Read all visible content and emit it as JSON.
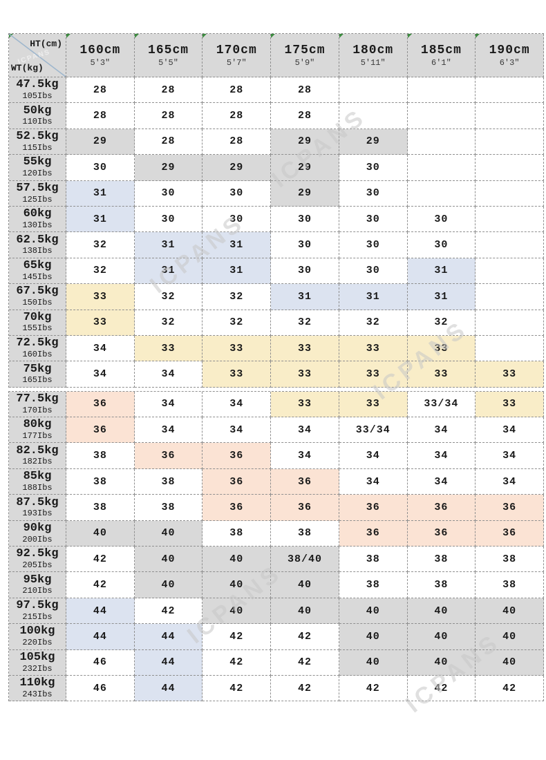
{
  "watermark": {
    "text": "ICPANS"
  },
  "colors": {
    "header_bg": "#d9d9d9",
    "border": "#8f8f8f",
    "triangle_green": "#3d8b40",
    "diagonal_line": "#9db6cd",
    "cell_fills": {
      "w": "#ffffff",
      "g": "#d9d9d9",
      "b": "#dce3f0",
      "y": "#f9edc8",
      "p": "#fbe3d4"
    }
  },
  "chart_data": {
    "type": "table",
    "title": "Height / Weight size chart",
    "corner": {
      "top_label": "HT(cm)",
      "bottom_label": "WT(kg)"
    },
    "columns": [
      {
        "cm": "160cm",
        "ft": "5'3\""
      },
      {
        "cm": "165cm",
        "ft": "5'5\""
      },
      {
        "cm": "170cm",
        "ft": "5'7\""
      },
      {
        "cm": "175cm",
        "ft": "5'9\""
      },
      {
        "cm": "180cm",
        "ft": "5'11\""
      },
      {
        "cm": "185cm",
        "ft": "6'1\""
      },
      {
        "cm": "190cm",
        "ft": "6'3\""
      }
    ],
    "sections": [
      {
        "rows": [
          {
            "kg": "47.5kg",
            "lbs": "105Ibs",
            "cells": [
              [
                "28",
                "w"
              ],
              [
                "28",
                "w"
              ],
              [
                "28",
                "w"
              ],
              [
                "28",
                "w"
              ],
              [
                "",
                "w"
              ],
              [
                "",
                "w"
              ],
              [
                "",
                "w"
              ]
            ]
          },
          {
            "kg": "50kg",
            "lbs": "110Ibs",
            "cells": [
              [
                "28",
                "w"
              ],
              [
                "28",
                "w"
              ],
              [
                "28",
                "w"
              ],
              [
                "28",
                "w"
              ],
              [
                "",
                "w"
              ],
              [
                "",
                "w"
              ],
              [
                "",
                "w"
              ]
            ]
          },
          {
            "kg": "52.5kg",
            "lbs": "115Ibs",
            "cells": [
              [
                "29",
                "g"
              ],
              [
                "28",
                "w"
              ],
              [
                "28",
                "w"
              ],
              [
                "29",
                "g"
              ],
              [
                "29",
                "g"
              ],
              [
                "",
                "w"
              ],
              [
                "",
                "w"
              ]
            ]
          },
          {
            "kg": "55kg",
            "lbs": "120Ibs",
            "cells": [
              [
                "30",
                "w"
              ],
              [
                "29",
                "g"
              ],
              [
                "29",
                "g"
              ],
              [
                "29",
                "g"
              ],
              [
                "30",
                "w"
              ],
              [
                "",
                "w"
              ],
              [
                "",
                "w"
              ]
            ]
          },
          {
            "kg": "57.5kg",
            "lbs": "125Ibs",
            "cells": [
              [
                "31",
                "b"
              ],
              [
                "30",
                "w"
              ],
              [
                "30",
                "w"
              ],
              [
                "29",
                "g"
              ],
              [
                "30",
                "w"
              ],
              [
                "",
                "w"
              ],
              [
                "",
                "w"
              ]
            ]
          },
          {
            "kg": "60kg",
            "lbs": "130Ibs",
            "cells": [
              [
                "31",
                "b"
              ],
              [
                "30",
                "w"
              ],
              [
                "30",
                "w"
              ],
              [
                "30",
                "w"
              ],
              [
                "30",
                "w"
              ],
              [
                "30",
                "w"
              ],
              [
                "",
                "w"
              ]
            ]
          },
          {
            "kg": "62.5kg",
            "lbs": "138Ibs",
            "cells": [
              [
                "32",
                "w"
              ],
              [
                "31",
                "b"
              ],
              [
                "31",
                "b"
              ],
              [
                "30",
                "w"
              ],
              [
                "30",
                "w"
              ],
              [
                "30",
                "w"
              ],
              [
                "",
                "w"
              ]
            ]
          },
          {
            "kg": "65kg",
            "lbs": "145Ibs",
            "cells": [
              [
                "32",
                "w"
              ],
              [
                "31",
                "b"
              ],
              [
                "31",
                "b"
              ],
              [
                "30",
                "w"
              ],
              [
                "30",
                "w"
              ],
              [
                "31",
                "b"
              ],
              [
                "",
                "w"
              ]
            ]
          },
          {
            "kg": "67.5kg",
            "lbs": "150Ibs",
            "cells": [
              [
                "33",
                "y"
              ],
              [
                "32",
                "w"
              ],
              [
                "32",
                "w"
              ],
              [
                "31",
                "b"
              ],
              [
                "31",
                "b"
              ],
              [
                "31",
                "b"
              ],
              [
                "",
                "w"
              ]
            ]
          },
          {
            "kg": "70kg",
            "lbs": "155Ibs",
            "cells": [
              [
                "33",
                "y"
              ],
              [
                "32",
                "w"
              ],
              [
                "32",
                "w"
              ],
              [
                "32",
                "w"
              ],
              [
                "32",
                "w"
              ],
              [
                "32",
                "w"
              ],
              [
                "",
                "w"
              ]
            ]
          },
          {
            "kg": "72.5kg",
            "lbs": "160Ibs",
            "cells": [
              [
                "34",
                "w"
              ],
              [
                "33",
                "y"
              ],
              [
                "33",
                "y"
              ],
              [
                "33",
                "y"
              ],
              [
                "33",
                "y"
              ],
              [
                "33",
                "y"
              ],
              [
                "",
                "w"
              ]
            ]
          },
          {
            "kg": "75kg",
            "lbs": "165Ibs",
            "cells": [
              [
                "34",
                "w"
              ],
              [
                "34",
                "w"
              ],
              [
                "33",
                "y"
              ],
              [
                "33",
                "y"
              ],
              [
                "33",
                "y"
              ],
              [
                "33",
                "y"
              ],
              [
                "33",
                "y"
              ]
            ]
          }
        ]
      },
      {
        "rows": [
          {
            "kg": "77.5kg",
            "lbs": "170Ibs",
            "cells": [
              [
                "36",
                "p"
              ],
              [
                "34",
                "w"
              ],
              [
                "34",
                "w"
              ],
              [
                "33",
                "y"
              ],
              [
                "33",
                "y"
              ],
              [
                "33/34",
                "w"
              ],
              [
                "33",
                "y"
              ]
            ]
          },
          {
            "kg": "80kg",
            "lbs": "177Ibs",
            "cells": [
              [
                "36",
                "p"
              ],
              [
                "34",
                "w"
              ],
              [
                "34",
                "w"
              ],
              [
                "34",
                "w"
              ],
              [
                "33/34",
                "w"
              ],
              [
                "34",
                "w"
              ],
              [
                "34",
                "w"
              ]
            ]
          },
          {
            "kg": "82.5kg",
            "lbs": "182Ibs",
            "cells": [
              [
                "38",
                "w"
              ],
              [
                "36",
                "p"
              ],
              [
                "36",
                "p"
              ],
              [
                "34",
                "w"
              ],
              [
                "34",
                "w"
              ],
              [
                "34",
                "w"
              ],
              [
                "34",
                "w"
              ]
            ]
          },
          {
            "kg": "85kg",
            "lbs": "188Ibs",
            "cells": [
              [
                "38",
                "w"
              ],
              [
                "38",
                "w"
              ],
              [
                "36",
                "p"
              ],
              [
                "36",
                "p"
              ],
              [
                "34",
                "w"
              ],
              [
                "34",
                "w"
              ],
              [
                "34",
                "w"
              ]
            ]
          },
          {
            "kg": "87.5kg",
            "lbs": "193Ibs",
            "cells": [
              [
                "38",
                "w"
              ],
              [
                "38",
                "w"
              ],
              [
                "36",
                "p"
              ],
              [
                "36",
                "p"
              ],
              [
                "36",
                "p"
              ],
              [
                "36",
                "p"
              ],
              [
                "36",
                "p"
              ]
            ]
          },
          {
            "kg": "90kg",
            "lbs": "200Ibs",
            "cells": [
              [
                "40",
                "g"
              ],
              [
                "40",
                "g"
              ],
              [
                "38",
                "w"
              ],
              [
                "38",
                "w"
              ],
              [
                "36",
                "p"
              ],
              [
                "36",
                "p"
              ],
              [
                "36",
                "p"
              ]
            ]
          },
          {
            "kg": "92.5kg",
            "lbs": "205Ibs",
            "cells": [
              [
                "42",
                "w"
              ],
              [
                "40",
                "g"
              ],
              [
                "40",
                "g"
              ],
              [
                "38/40",
                "g"
              ],
              [
                "38",
                "w"
              ],
              [
                "38",
                "w"
              ],
              [
                "38",
                "w"
              ]
            ]
          },
          {
            "kg": "95kg",
            "lbs": "210Ibs",
            "cells": [
              [
                "42",
                "w"
              ],
              [
                "40",
                "g"
              ],
              [
                "40",
                "g"
              ],
              [
                "40",
                "g"
              ],
              [
                "38",
                "w"
              ],
              [
                "38",
                "w"
              ],
              [
                "38",
                "w"
              ]
            ]
          },
          {
            "kg": "97.5kg",
            "lbs": "215Ibs",
            "cells": [
              [
                "44",
                "b"
              ],
              [
                "42",
                "w"
              ],
              [
                "40",
                "g"
              ],
              [
                "40",
                "g"
              ],
              [
                "40",
                "g"
              ],
              [
                "40",
                "g"
              ],
              [
                "40",
                "g"
              ]
            ]
          },
          {
            "kg": "100kg",
            "lbs": "220Ibs",
            "cells": [
              [
                "44",
                "b"
              ],
              [
                "44",
                "b"
              ],
              [
                "42",
                "w"
              ],
              [
                "42",
                "w"
              ],
              [
                "40",
                "g"
              ],
              [
                "40",
                "g"
              ],
              [
                "40",
                "g"
              ]
            ]
          },
          {
            "kg": "105kg",
            "lbs": "232Ibs",
            "cells": [
              [
                "46",
                "w"
              ],
              [
                "44",
                "b"
              ],
              [
                "42",
                "w"
              ],
              [
                "42",
                "w"
              ],
              [
                "40",
                "g"
              ],
              [
                "40",
                "g"
              ],
              [
                "40",
                "g"
              ]
            ]
          },
          {
            "kg": "110kg",
            "lbs": "243Ibs",
            "cells": [
              [
                "46",
                "w"
              ],
              [
                "44",
                "b"
              ],
              [
                "42",
                "w"
              ],
              [
                "42",
                "w"
              ],
              [
                "42",
                "w"
              ],
              [
                "42",
                "w"
              ],
              [
                "42",
                "w"
              ]
            ]
          }
        ]
      }
    ]
  }
}
